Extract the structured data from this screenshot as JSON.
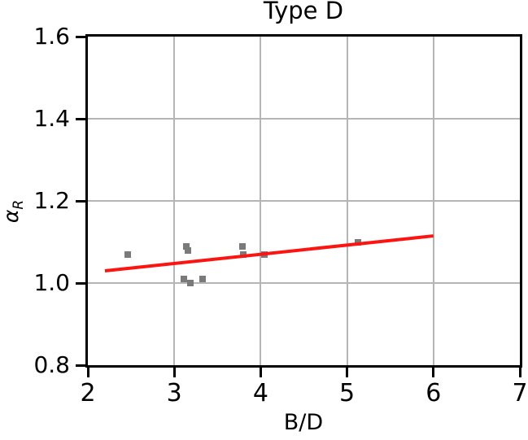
{
  "figure": {
    "background": "#ffffff"
  },
  "chart_data": {
    "type": "scatter",
    "title": "Type D",
    "xlabel": "B/D",
    "ylabel_symbol": "α",
    "ylabel_subscript": "R",
    "xlim": [
      2,
      7
    ],
    "ylim": [
      0.8,
      1.6
    ],
    "xticks": [
      2,
      3,
      4,
      5,
      6,
      7
    ],
    "xticklabels": [
      "2",
      "3",
      "4",
      "5",
      "6",
      "7"
    ],
    "yticks": [
      0.8,
      1.0,
      1.2,
      1.4,
      1.6
    ],
    "yticklabels": [
      "0.8",
      "1.0",
      "1.2",
      "1.4",
      "1.6"
    ],
    "grid": true,
    "legend": "none",
    "series": [
      {
        "name": "scatter-points",
        "type": "scatter",
        "marker": "square",
        "color": "#7a7a7a",
        "points": [
          [
            2.46,
            1.07
          ],
          [
            3.14,
            1.09
          ],
          [
            3.16,
            1.08
          ],
          [
            3.11,
            1.01
          ],
          [
            3.19,
            1.0
          ],
          [
            3.33,
            1.01
          ],
          [
            3.79,
            1.09
          ],
          [
            3.8,
            1.07
          ],
          [
            4.04,
            1.07
          ],
          [
            5.13,
            1.1
          ]
        ]
      },
      {
        "name": "trend-line",
        "type": "line",
        "color": "#fb1410",
        "x1": 2.2,
        "y1": 1.03,
        "x2": 6.0,
        "y2": 1.115
      }
    ],
    "style": {
      "grid_color": "#b5b5b5",
      "spine_color": "#000000",
      "text_color": "#000000",
      "point_color": "#7a7a7a",
      "line_color": "#fb1410"
    }
  }
}
